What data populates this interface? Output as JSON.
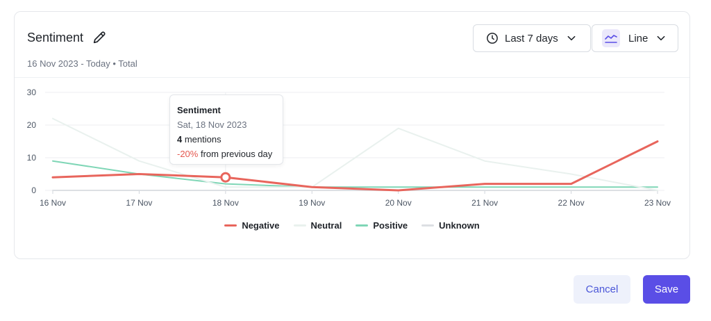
{
  "header": {
    "title": "Sentiment",
    "subtitle": "16 Nov 2023 - Today • Total",
    "range_label": "Last 7 days",
    "chart_type_label": "Line"
  },
  "tooltip": {
    "title": "Sentiment",
    "date": "Sat, 18 Nov 2023",
    "count": "4",
    "count_suffix": " mentions",
    "change": "-20%",
    "change_suffix": " from previous day"
  },
  "chart_data": {
    "type": "line",
    "categories": [
      "16 Nov",
      "17 Nov",
      "18 Nov",
      "19 Nov",
      "20 Nov",
      "21 Nov",
      "22 Nov",
      "23 Nov"
    ],
    "yticks": [
      "0",
      "10",
      "20",
      "30"
    ],
    "ylim": [
      0,
      30
    ],
    "grid": true,
    "legend_position": "bottom",
    "highlight_index": 2,
    "series": [
      {
        "name": "Negative",
        "color": "#e8655c",
        "values": [
          4,
          5,
          4,
          1,
          0,
          2,
          2,
          15
        ]
      },
      {
        "name": "Neutral",
        "color": "#e9f1ee",
        "values": [
          22,
          9,
          1,
          1,
          19,
          9,
          5,
          0
        ]
      },
      {
        "name": "Positive",
        "color": "#7fd6b6",
        "values": [
          9,
          5,
          2,
          1,
          1,
          1,
          1,
          1
        ]
      },
      {
        "name": "Unknown",
        "color": "#dcdfe3",
        "values": [
          0,
          0,
          0,
          0,
          0,
          0,
          0,
          0
        ]
      }
    ]
  },
  "footer": {
    "cancel_label": "Cancel",
    "save_label": "Save"
  },
  "colors": {
    "accent": "#5a4ee6",
    "negative": "#e8655c"
  }
}
